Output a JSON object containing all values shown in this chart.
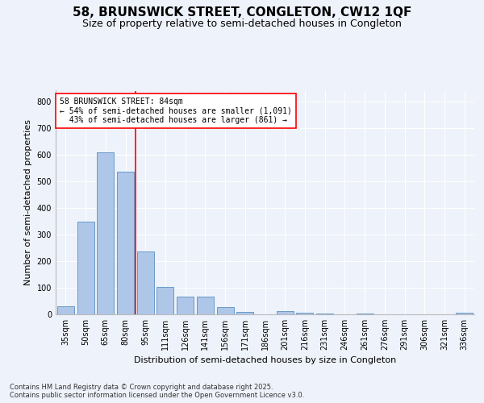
{
  "title": "58, BRUNSWICK STREET, CONGLETON, CW12 1QF",
  "subtitle": "Size of property relative to semi-detached houses in Congleton",
  "xlabel": "Distribution of semi-detached houses by size in Congleton",
  "ylabel": "Number of semi-detached properties",
  "categories": [
    "35sqm",
    "50sqm",
    "65sqm",
    "80sqm",
    "95sqm",
    "111sqm",
    "126sqm",
    "141sqm",
    "156sqm",
    "171sqm",
    "186sqm",
    "201sqm",
    "216sqm",
    "231sqm",
    "246sqm",
    "261sqm",
    "276sqm",
    "291sqm",
    "306sqm",
    "321sqm",
    "336sqm"
  ],
  "values": [
    30,
    348,
    609,
    537,
    237,
    103,
    68,
    68,
    28,
    10,
    0,
    12,
    7,
    3,
    0,
    2,
    0,
    0,
    0,
    0,
    5
  ],
  "bar_color": "#aec6e8",
  "bar_edge_color": "#5a8fc2",
  "property_line_x": 3.5,
  "pct_smaller": 54,
  "count_smaller": 1091,
  "pct_larger": 43,
  "count_larger": 861,
  "annotation_label": "58 BRUNSWICK STREET: 84sqm",
  "ylim": [
    0,
    840
  ],
  "yticks": [
    0,
    100,
    200,
    300,
    400,
    500,
    600,
    700,
    800
  ],
  "footer_line1": "Contains HM Land Registry data © Crown copyright and database right 2025.",
  "footer_line2": "Contains public sector information licensed under the Open Government Licence v3.0.",
  "background_color": "#eef2fa",
  "title_fontsize": 11,
  "subtitle_fontsize": 9,
  "axis_label_fontsize": 8,
  "tick_fontsize": 7,
  "footer_fontsize": 6
}
